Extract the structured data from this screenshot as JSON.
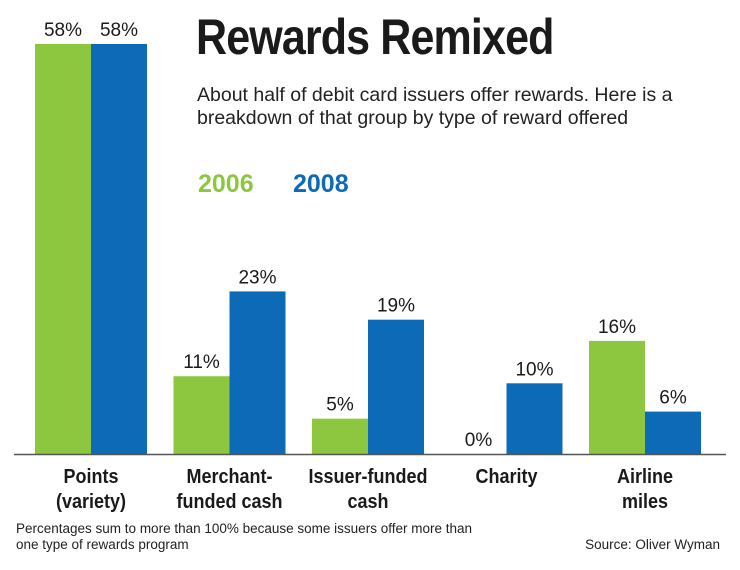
{
  "chart_data": {
    "type": "bar",
    "title": "Rewards Remixed",
    "subtitle": "About half of debit card issuers offer rewards. Here is a breakdown of that group by type of reward offered",
    "categories": [
      [
        "Points",
        "(variety)"
      ],
      [
        "Merchant-",
        "funded cash"
      ],
      [
        "Issuer-funded",
        "cash"
      ],
      [
        "Charity"
      ],
      [
        "Airline",
        "miles"
      ]
    ],
    "series": [
      {
        "name": "2006",
        "values": [
          58,
          11,
          5,
          0,
          16
        ],
        "labels": [
          "58%",
          "11%",
          "5%",
          "0%",
          "16%"
        ],
        "color": "#8dc63f"
      },
      {
        "name": "2008",
        "values": [
          58,
          23,
          19,
          10,
          6
        ],
        "labels": [
          "58%",
          "23%",
          "19%",
          "10%",
          "6%"
        ],
        "color": "#0c6ab6"
      }
    ],
    "ylim": [
      0,
      58
    ],
    "grid": false,
    "legend_position": "top",
    "footnote": "Percentages sum to more than 100% because some issuers offer more than one type of rewards program",
    "source": "Source: Oliver Wyman"
  }
}
